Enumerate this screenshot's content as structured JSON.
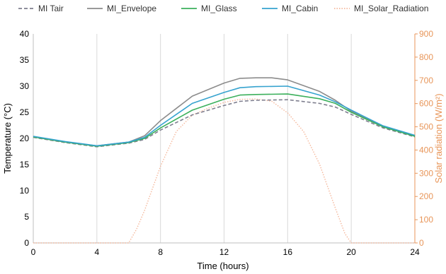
{
  "chart_data": {
    "type": "line",
    "xlabel": "Time (hours)",
    "ylabel": "Temperature (°C)",
    "y2label": "Solar radiation (W/m²)",
    "xlim": [
      0,
      24
    ],
    "ylim": [
      0,
      40
    ],
    "y2lim": [
      0,
      900
    ],
    "xticks": [
      0,
      4,
      8,
      12,
      16,
      20,
      24
    ],
    "yticks": [
      0,
      5,
      10,
      15,
      20,
      25,
      30,
      35,
      40
    ],
    "y2ticks": [
      0,
      100,
      200,
      300,
      400,
      500,
      600,
      700,
      800,
      900
    ],
    "grid": "vertical",
    "legend_position": "top",
    "series": [
      {
        "name": "MI Tair",
        "axis": "left",
        "color": "#7f7f8f",
        "style": "dashed",
        "points": [
          [
            0,
            20.2
          ],
          [
            2,
            19.2
          ],
          [
            4,
            18.4
          ],
          [
            6,
            19.1
          ],
          [
            7,
            19.8
          ],
          [
            8,
            21.6
          ],
          [
            10,
            24.5
          ],
          [
            12,
            26.3
          ],
          [
            13,
            27.1
          ],
          [
            14,
            27.3
          ],
          [
            16,
            27.4
          ],
          [
            18,
            26.7
          ],
          [
            19,
            26.0
          ],
          [
            20,
            24.6
          ],
          [
            22,
            22.0
          ],
          [
            24,
            20.3
          ]
        ]
      },
      {
        "name": "MI_Envelope",
        "axis": "left",
        "color": "#8c8c8c",
        "style": "solid",
        "points": [
          [
            0,
            20.3
          ],
          [
            2,
            19.3
          ],
          [
            4,
            18.6
          ],
          [
            6,
            19.3
          ],
          [
            7,
            20.5
          ],
          [
            8,
            23.4
          ],
          [
            10,
            28.1
          ],
          [
            12,
            30.6
          ],
          [
            13,
            31.5
          ],
          [
            14,
            31.6
          ],
          [
            15,
            31.6
          ],
          [
            16,
            31.2
          ],
          [
            18,
            29.0
          ],
          [
            19,
            27.3
          ],
          [
            20,
            25.2
          ],
          [
            22,
            22.3
          ],
          [
            24,
            20.5
          ]
        ]
      },
      {
        "name": "MI_Glass",
        "axis": "left",
        "color": "#3cb05c",
        "style": "solid",
        "points": [
          [
            0,
            20.3
          ],
          [
            2,
            19.3
          ],
          [
            4,
            18.5
          ],
          [
            6,
            19.2
          ],
          [
            7,
            20.0
          ],
          [
            8,
            22.0
          ],
          [
            10,
            25.4
          ],
          [
            12,
            27.5
          ],
          [
            13,
            28.3
          ],
          [
            14,
            28.4
          ],
          [
            16,
            28.5
          ],
          [
            18,
            27.6
          ],
          [
            19,
            26.7
          ],
          [
            20,
            25.0
          ],
          [
            22,
            22.2
          ],
          [
            24,
            20.4
          ]
        ]
      },
      {
        "name": "MI_Cabin",
        "axis": "left",
        "color": "#36a3cf",
        "style": "solid",
        "points": [
          [
            0,
            20.4
          ],
          [
            2,
            19.4
          ],
          [
            4,
            18.6
          ],
          [
            6,
            19.3
          ],
          [
            7,
            20.2
          ],
          [
            8,
            22.5
          ],
          [
            10,
            26.7
          ],
          [
            12,
            28.8
          ],
          [
            13,
            29.7
          ],
          [
            14,
            29.9
          ],
          [
            16,
            30.0
          ],
          [
            18,
            28.3
          ],
          [
            19,
            27.0
          ],
          [
            20,
            25.4
          ],
          [
            22,
            22.4
          ],
          [
            24,
            20.6
          ]
        ]
      },
      {
        "name": "MI_Solar_Radiation",
        "axis": "right",
        "color": "#f5b89c",
        "style": "dotted",
        "points": [
          [
            0,
            0
          ],
          [
            6,
            0
          ],
          [
            6.5,
            60
          ],
          [
            7,
            140
          ],
          [
            8,
            330
          ],
          [
            9,
            480
          ],
          [
            10,
            550
          ],
          [
            11,
            580
          ],
          [
            12,
            605
          ],
          [
            13,
            618
          ],
          [
            14,
            620
          ],
          [
            15,
            610
          ],
          [
            16,
            560
          ],
          [
            17,
            480
          ],
          [
            18,
            340
          ],
          [
            19,
            150
          ],
          [
            19.6,
            40
          ],
          [
            20,
            0
          ],
          [
            24,
            0
          ]
        ]
      }
    ]
  }
}
